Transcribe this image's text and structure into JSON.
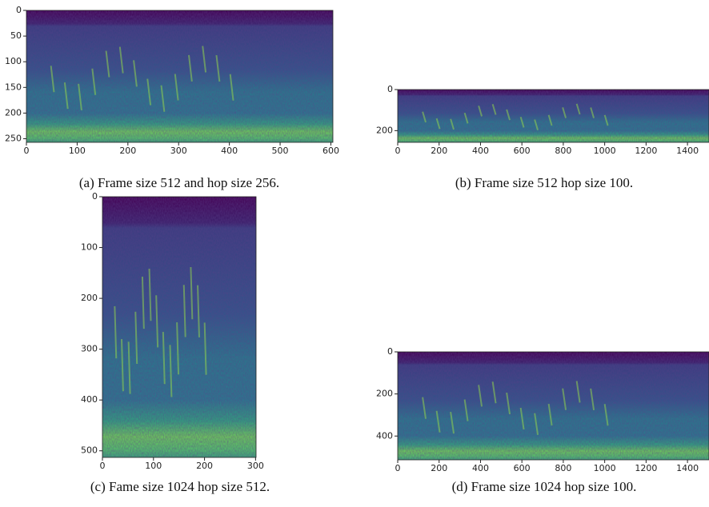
{
  "figure": {
    "panels": [
      {
        "caption": "(a) Frame size 512 and hop size 256.",
        "xlim": [
          0,
          604
        ],
        "ylim": [
          0,
          257
        ],
        "xticks": [
          0,
          100,
          200,
          300,
          400,
          500,
          600
        ],
        "yticks": [
          0,
          50,
          100,
          150,
          200,
          250
        ]
      },
      {
        "caption": "(b) Frame size 512 hop size 100.",
        "xlim": [
          0,
          1504
        ],
        "ylim": [
          0,
          257
        ],
        "xticks": [
          0,
          200,
          400,
          600,
          800,
          1000,
          1200,
          1400
        ],
        "yticks": [
          0,
          200
        ]
      },
      {
        "caption": "(c) Fame size 1024 hop size 512.",
        "xlim": [
          0,
          301
        ],
        "ylim": [
          0,
          513
        ],
        "xticks": [
          0,
          100,
          200,
          300
        ],
        "yticks": [
          0,
          100,
          200,
          300,
          400,
          500
        ]
      },
      {
        "caption": "(d) Frame size 1024 hop size 100.",
        "xlim": [
          0,
          1504
        ],
        "ylim": [
          0,
          513
        ],
        "xticks": [
          0,
          200,
          400,
          600,
          800,
          1000,
          1200,
          1400
        ],
        "yticks": [
          0,
          200,
          400
        ]
      }
    ]
  }
}
